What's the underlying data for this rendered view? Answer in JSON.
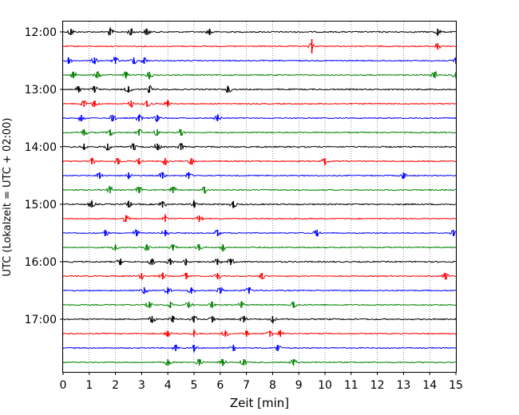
{
  "chart_data": {
    "type": "line",
    "xlabel": "Zeit  [min]",
    "ylabel": "UTC (Lokalzeit = UTC + 02:00)",
    "xlim": [
      0,
      15
    ],
    "x_ticks": [
      "0",
      "1",
      "2",
      "3",
      "4",
      "5",
      "6",
      "7",
      "8",
      "9",
      "10",
      "11",
      "12",
      "13",
      "14",
      "15"
    ],
    "y_hour_labels": [
      "12:00",
      "13:00",
      "14:00",
      "15:00",
      "16:00",
      "17:00"
    ],
    "grid": "vertical dotted",
    "trace_colors": [
      "#000000",
      "#ff0000",
      "#0000ff",
      "#008000"
    ],
    "traces": [
      {
        "start": "12:00",
        "color": "#000000",
        "amplitude": 0.35,
        "events": [
          0.3,
          1.8,
          2.6,
          3.2,
          5.6,
          14.3
        ]
      },
      {
        "start": "12:15",
        "color": "#ff0000",
        "amplitude": 0.3,
        "events": [
          9.5,
          14.3
        ]
      },
      {
        "start": "12:30",
        "color": "#0000ff",
        "amplitude": 0.3,
        "events": [
          0.2,
          1.2,
          2.0,
          2.7,
          3.1,
          15.0
        ]
      },
      {
        "start": "12:45",
        "color": "#008000",
        "amplitude": 0.3,
        "events": [
          0.4,
          1.3,
          2.4,
          3.3,
          14.2,
          15.0
        ]
      },
      {
        "start": "13:00",
        "color": "#000000",
        "amplitude": 0.35,
        "events": [
          0.6,
          1.2,
          2.5,
          3.3,
          6.3
        ]
      },
      {
        "start": "13:15",
        "color": "#ff0000",
        "amplitude": 0.3,
        "events": [
          0.8,
          1.2,
          2.6,
          3.2,
          4.0
        ]
      },
      {
        "start": "13:30",
        "color": "#0000ff",
        "amplitude": 0.3,
        "events": [
          0.7,
          1.9,
          2.9,
          3.6,
          5.9
        ]
      },
      {
        "start": "13:45",
        "color": "#008000",
        "amplitude": 0.3,
        "events": [
          0.8,
          1.8,
          2.9,
          3.6,
          4.5
        ]
      },
      {
        "start": "14:00",
        "color": "#000000",
        "amplitude": 0.35,
        "events": [
          0.8,
          1.7,
          2.7,
          3.6,
          4.5
        ]
      },
      {
        "start": "14:15",
        "color": "#ff0000",
        "amplitude": 0.3,
        "events": [
          1.1,
          2.1,
          2.9,
          3.9,
          4.9,
          10.0
        ]
      },
      {
        "start": "14:30",
        "color": "#0000ff",
        "amplitude": 0.3,
        "events": [
          1.4,
          2.5,
          3.8,
          4.8,
          13.0
        ]
      },
      {
        "start": "14:45",
        "color": "#008000",
        "amplitude": 0.3,
        "events": [
          1.8,
          2.9,
          4.2,
          5.4
        ]
      },
      {
        "start": "15:00",
        "color": "#000000",
        "amplitude": 0.35,
        "events": [
          1.1,
          2.5,
          3.8,
          5.0,
          6.5
        ]
      },
      {
        "start": "15:15",
        "color": "#ff0000",
        "amplitude": 0.3,
        "events": [
          2.4,
          3.9,
          5.2
        ]
      },
      {
        "start": "15:30",
        "color": "#0000ff",
        "amplitude": 0.3,
        "events": [
          1.6,
          2.8,
          3.9,
          5.9,
          9.7,
          14.9
        ]
      },
      {
        "start": "15:45",
        "color": "#008000",
        "amplitude": 0.3,
        "events": [
          2.0,
          3.2,
          4.2,
          5.2,
          6.1
        ]
      },
      {
        "start": "16:00",
        "color": "#000000",
        "amplitude": 0.35,
        "events": [
          2.2,
          3.4,
          4.1,
          4.7,
          5.9,
          6.4
        ]
      },
      {
        "start": "16:15",
        "color": "#ff0000",
        "amplitude": 0.3,
        "events": [
          3.0,
          3.8,
          4.7,
          5.9,
          7.6,
          14.6
        ]
      },
      {
        "start": "16:30",
        "color": "#0000ff",
        "amplitude": 0.3,
        "events": [
          3.1,
          4.0,
          4.9,
          6.0,
          7.1
        ]
      },
      {
        "start": "16:45",
        "color": "#008000",
        "amplitude": 0.3,
        "events": [
          3.3,
          4.1,
          4.8,
          5.7,
          6.8,
          8.8
        ]
      },
      {
        "start": "17:00",
        "color": "#000000",
        "amplitude": 0.35,
        "events": [
          3.4,
          4.2,
          5.0,
          5.7,
          6.9,
          8.0
        ]
      },
      {
        "start": "17:15",
        "color": "#ff0000",
        "amplitude": 0.3,
        "events": [
          4.0,
          5.0,
          6.2,
          7.0,
          7.9,
          8.3
        ]
      },
      {
        "start": "17:30",
        "color": "#0000ff",
        "amplitude": 0.3,
        "events": [
          4.3,
          5.0,
          6.5,
          8.2
        ]
      },
      {
        "start": "17:45",
        "color": "#008000",
        "amplitude": 0.3,
        "events": [
          4.0,
          5.2,
          6.1,
          6.9,
          8.8
        ]
      }
    ]
  }
}
